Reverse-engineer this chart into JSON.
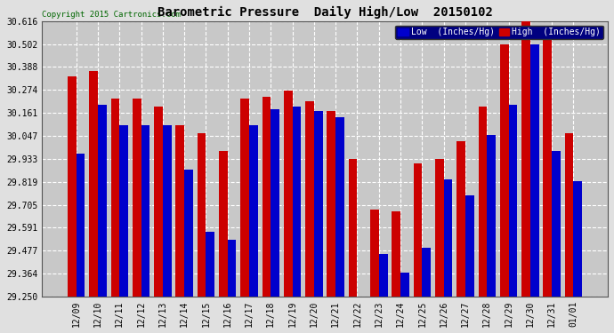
{
  "title": "Barometric Pressure  Daily High/Low  20150102",
  "copyright": "Copyright 2015 Cartronics.com",
  "legend_low": "Low  (Inches/Hg)",
  "legend_high": "High  (Inches/Hg)",
  "low_color": "#0000cc",
  "high_color": "#cc0000",
  "background_color": "#e0e0e0",
  "plot_bg_color": "#c8c8c8",
  "ylim": [
    29.25,
    30.616
  ],
  "yticks": [
    29.25,
    29.364,
    29.477,
    29.591,
    29.705,
    29.819,
    29.933,
    30.047,
    30.161,
    30.274,
    30.388,
    30.502,
    30.616
  ],
  "dates": [
    "12/09",
    "12/10",
    "12/11",
    "12/12",
    "12/13",
    "12/14",
    "12/15",
    "12/16",
    "12/17",
    "12/18",
    "12/19",
    "12/20",
    "12/21",
    "12/22",
    "12/23",
    "12/24",
    "12/25",
    "12/26",
    "12/27",
    "12/28",
    "12/29",
    "12/30",
    "12/31",
    "01/01"
  ],
  "high_values": [
    30.34,
    30.37,
    30.23,
    30.23,
    30.19,
    30.1,
    30.06,
    29.97,
    30.23,
    30.24,
    30.27,
    30.22,
    30.17,
    29.93,
    29.68,
    29.67,
    29.91,
    29.93,
    30.02,
    30.19,
    30.5,
    30.62,
    30.52,
    30.06
  ],
  "low_values": [
    29.96,
    30.2,
    30.1,
    30.1,
    30.1,
    29.88,
    29.57,
    29.53,
    30.1,
    30.18,
    30.19,
    30.17,
    30.14,
    29.25,
    29.46,
    29.37,
    29.49,
    29.83,
    29.75,
    30.05,
    30.2,
    30.5,
    29.97,
    29.82
  ]
}
